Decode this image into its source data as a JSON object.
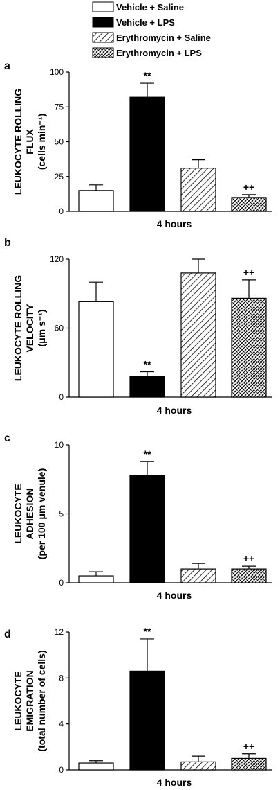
{
  "legend": [
    {
      "label": "Vehicle + Saline",
      "pattern": "white"
    },
    {
      "label": "Vehicle + LPS",
      "pattern": "black"
    },
    {
      "label": "Erythromycin + Saline",
      "pattern": "diag"
    },
    {
      "label": "Erythromycin + LPS",
      "pattern": "cross"
    }
  ],
  "chart_data": [
    {
      "type": "bar",
      "panel": "a",
      "xlabel": "4 hours",
      "ylabel": [
        "LEUKOCYTE ROLLING",
        "FLUX",
        "(cells min⁻¹)"
      ],
      "ylim": [
        0,
        100
      ],
      "yticks": [
        "0",
        "25",
        "50",
        "75",
        "100"
      ],
      "categories": [
        "Vehicle + Saline",
        "Vehicle + LPS",
        "Erythromycin + Saline",
        "Erythromycin + LPS"
      ],
      "values": [
        15,
        82,
        31,
        10
      ],
      "errors": [
        4,
        10,
        6,
        2
      ],
      "annotations": [
        "",
        "**",
        "",
        "++"
      ]
    },
    {
      "type": "bar",
      "panel": "b",
      "xlabel": "4 hours",
      "ylabel": [
        "LEUKOCYTE ROLLING",
        "VELOCITY",
        "(μm s⁻¹)"
      ],
      "ylim": [
        0,
        120
      ],
      "yticks": [
        "0",
        "60",
        "120"
      ],
      "categories": [
        "Vehicle + Saline",
        "Vehicle + LPS",
        "Erythromycin + Saline",
        "Erythromycin + LPS"
      ],
      "values": [
        83,
        18,
        108,
        86
      ],
      "errors": [
        17,
        4,
        12,
        16
      ],
      "annotations": [
        "",
        "**",
        "",
        "++"
      ]
    },
    {
      "type": "bar",
      "panel": "c",
      "xlabel": "4 hours",
      "ylabel": [
        "LEUKOCYTE",
        "ADHESION",
        "(per 100 μm venule)"
      ],
      "ylim": [
        0,
        10
      ],
      "yticks": [
        "0",
        "5",
        "10"
      ],
      "categories": [
        "Vehicle + Saline",
        "Vehicle + LPS",
        "Erythromycin + Saline",
        "Erythromycin + LPS"
      ],
      "values": [
        0.5,
        7.8,
        1.0,
        1.0
      ],
      "errors": [
        0.3,
        1.0,
        0.4,
        0.2
      ],
      "annotations": [
        "",
        "**",
        "",
        "++"
      ]
    },
    {
      "type": "bar",
      "panel": "d",
      "xlabel": "4 hours",
      "ylabel": [
        "LEUKOCYTE",
        "EMIGRATION",
        "(total number of cells)"
      ],
      "ylim": [
        0,
        12
      ],
      "yticks": [
        "0",
        "4",
        "8",
        "12"
      ],
      "categories": [
        "Vehicle + Saline",
        "Vehicle + LPS",
        "Erythromycin + Saline",
        "Erythromycin + LPS"
      ],
      "values": [
        0.6,
        8.6,
        0.7,
        1.0
      ],
      "errors": [
        0.2,
        2.8,
        0.5,
        0.4
      ],
      "annotations": [
        "",
        "**",
        "",
        "++"
      ]
    }
  ]
}
